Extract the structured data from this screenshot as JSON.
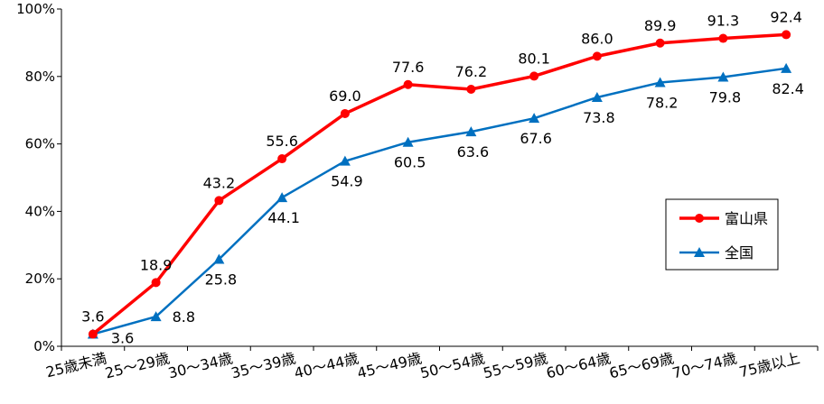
{
  "chart_data": {
    "type": "line",
    "categories": [
      "25歳未満",
      "25～29歳",
      "30～34歳",
      "35～39歳",
      "40～44歳",
      "45～49歳",
      "50～54歳",
      "55～59歳",
      "60～64歳",
      "65～69歳",
      "70～74歳",
      "75歳以上"
    ],
    "series": [
      {
        "name": "富山県",
        "values": [
          3.6,
          18.9,
          43.2,
          55.6,
          69.0,
          77.6,
          76.2,
          80.1,
          86.0,
          89.9,
          91.3,
          92.4
        ],
        "labels": [
          "3.6",
          "18.9",
          "43.2",
          "55.6",
          "69.0",
          "77.6",
          "76.2",
          "80.1",
          "86.0",
          "89.9",
          "91.3",
          "92.4"
        ],
        "color": "#ff0000",
        "marker": "circle"
      },
      {
        "name": "全国",
        "values": [
          3.6,
          8.8,
          25.8,
          44.1,
          54.9,
          60.5,
          63.6,
          67.6,
          73.8,
          78.2,
          79.8,
          82.4
        ],
        "labels": [
          "3.6",
          "8.8",
          "25.8",
          "44.1",
          "54.9",
          "60.5",
          "63.6",
          "67.6",
          "73.8",
          "78.2",
          "79.8",
          "82.4"
        ],
        "color": "#0070c0",
        "marker": "triangle"
      }
    ],
    "yticks": [
      "0%",
      "20%",
      "40%",
      "60%",
      "80%",
      "100%"
    ],
    "ylim": [
      0,
      100
    ],
    "grid": false,
    "legend_position": "right"
  }
}
